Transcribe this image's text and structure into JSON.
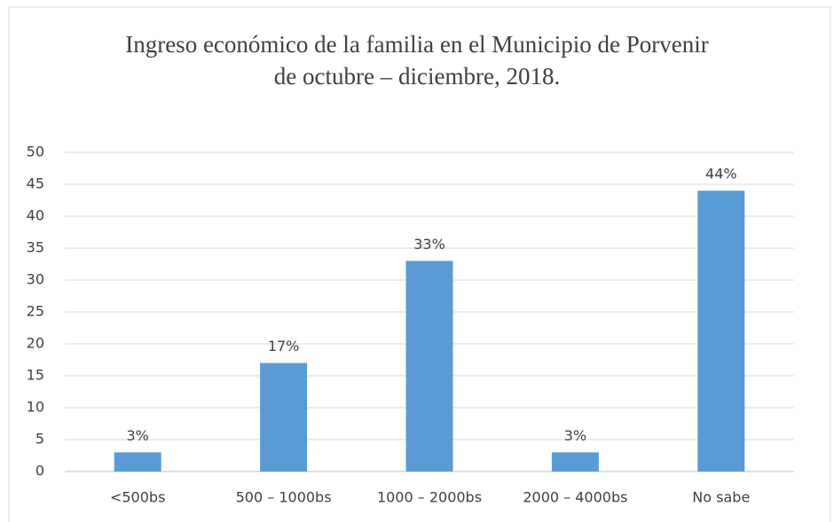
{
  "chart_data": {
    "type": "bar",
    "title": "Ingreso económico de la familia en el Municipio de Porvenir de octubre – diciembre, 2018.",
    "categories": [
      "<500bs",
      "500 – 1000bs",
      "1000 – 2000bs",
      "2000 – 4000bs",
      "No sabe"
    ],
    "values": [
      3,
      17,
      33,
      3,
      44
    ],
    "value_labels": [
      "3%",
      "17%",
      "33%",
      "3%",
      "44%"
    ],
    "color": "#5b9bd5",
    "ylim": [
      0,
      50
    ],
    "yticks": [
      0,
      5,
      10,
      15,
      20,
      25,
      30,
      35,
      40,
      45,
      50
    ],
    "grid": true
  }
}
